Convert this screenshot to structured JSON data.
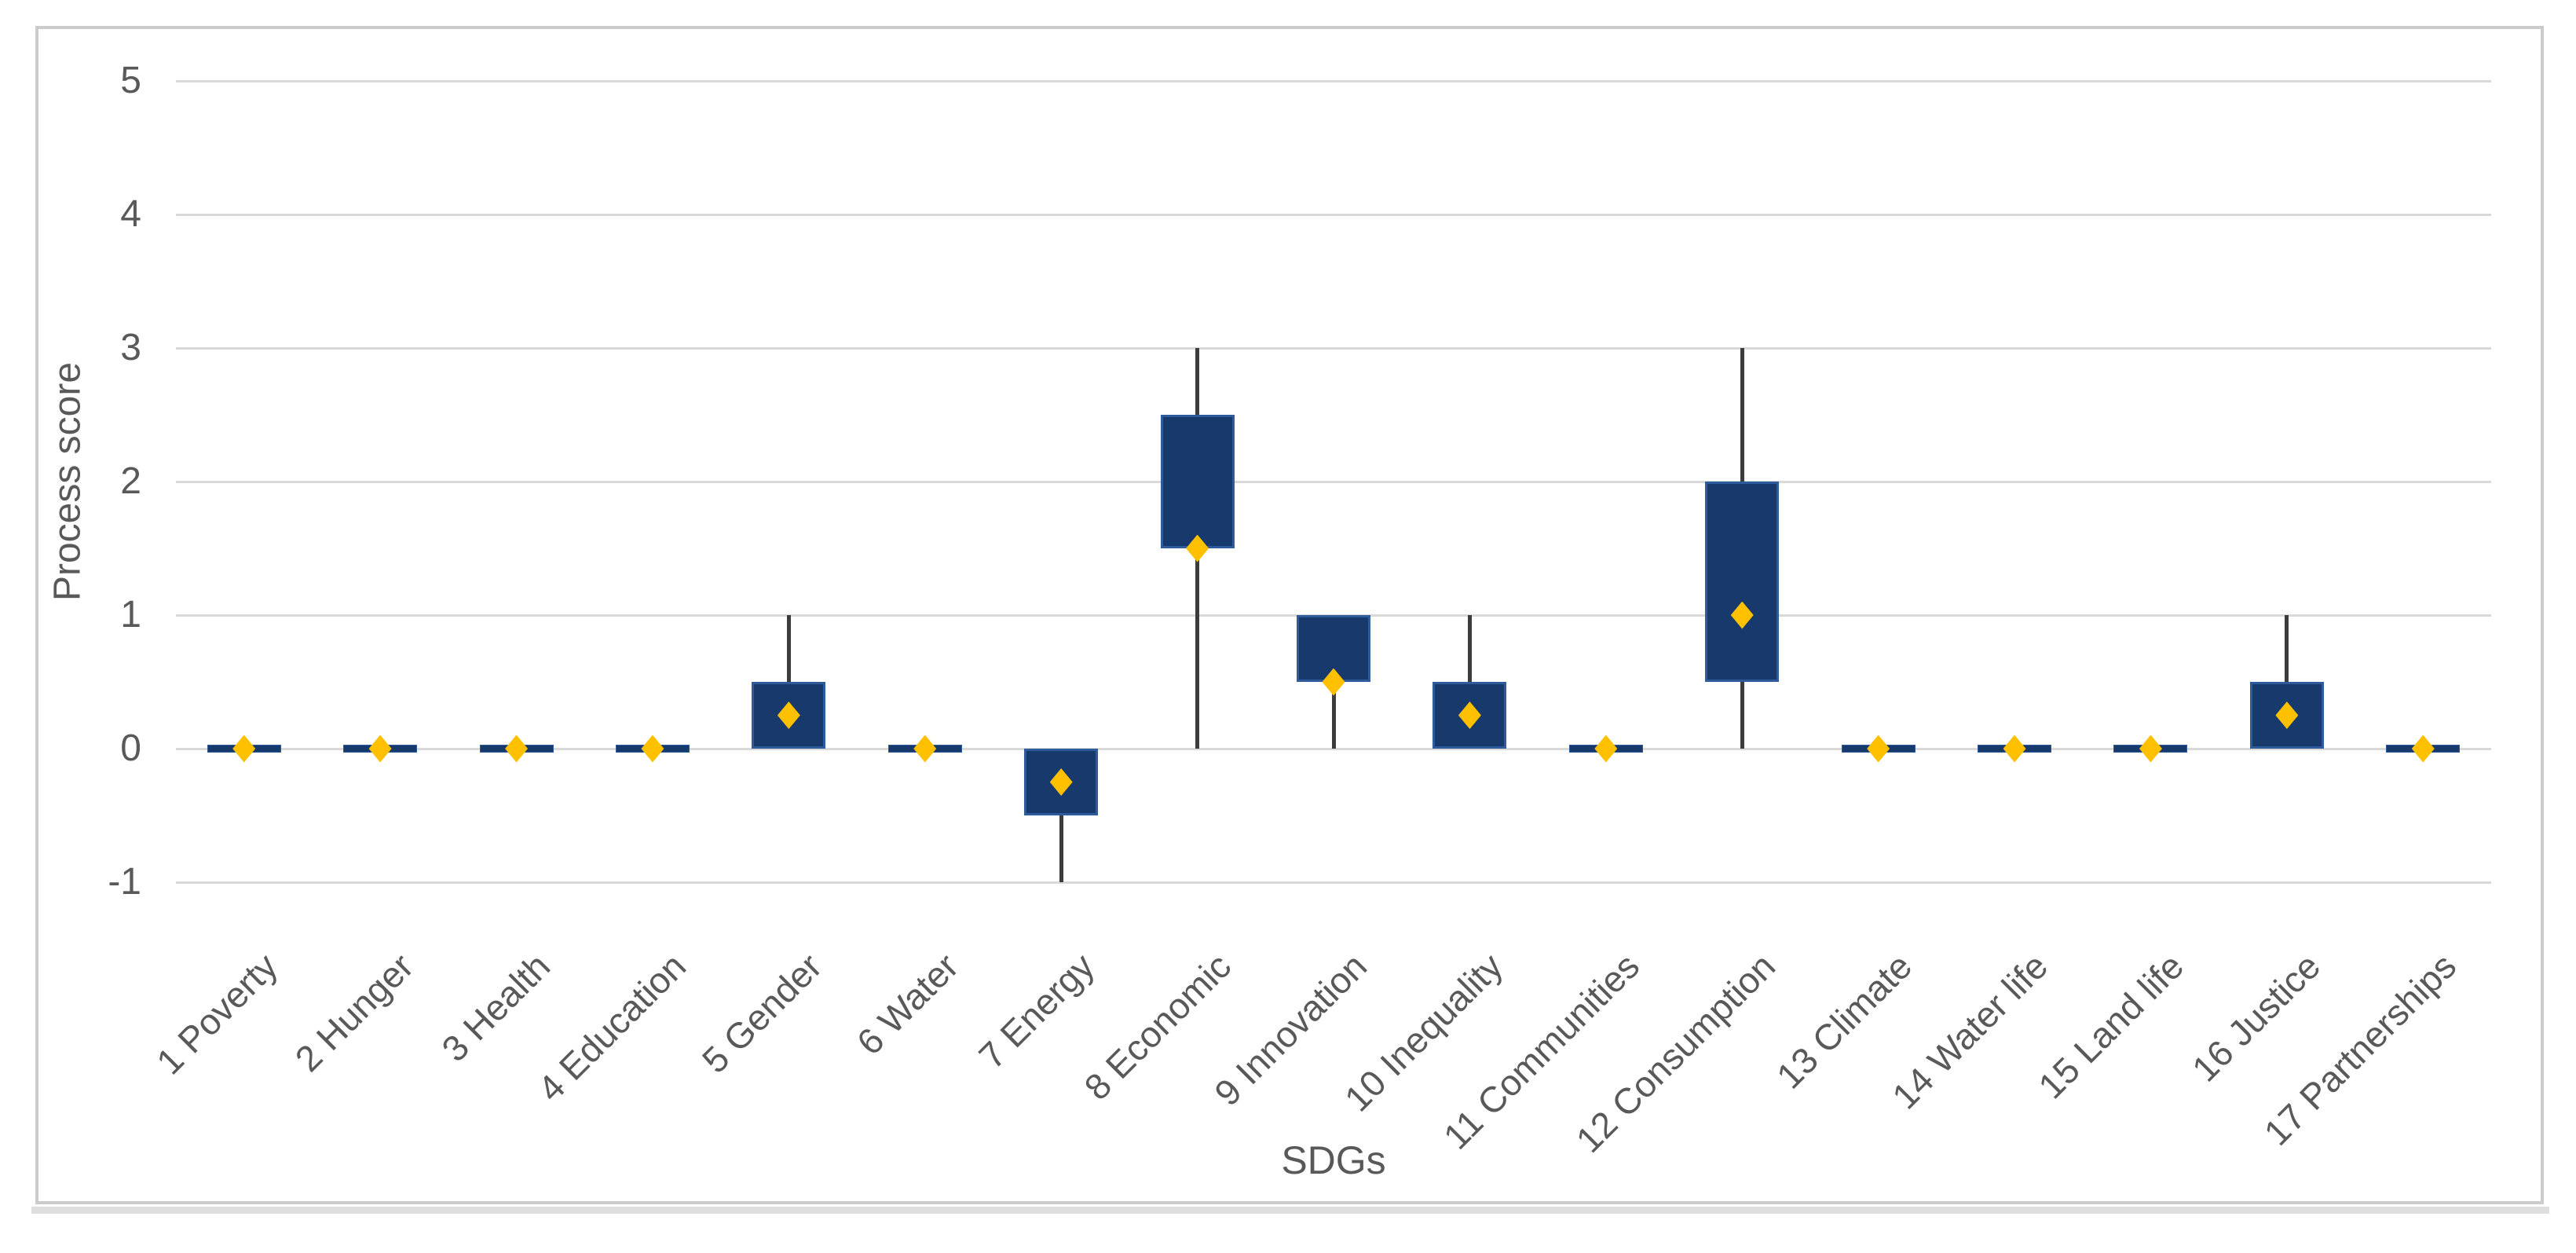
{
  "chart_data": {
    "type": "boxplot",
    "xlabel": "SDGs",
    "ylabel": "Process score",
    "ylim": [
      -1,
      5
    ],
    "grid": true,
    "legend": false,
    "y_ticks": [
      5,
      4,
      3,
      2,
      1,
      0,
      -1
    ],
    "categories": [
      "1 Poverty",
      "2 Hunger",
      "3 Health",
      "4 Education",
      "5 Gender",
      "6 Water",
      "7 Energy",
      "8 Economic",
      "9 Innovation",
      "10 Inequality",
      "11 Communities",
      "12 Consumption",
      "13 Climate",
      "14 Water life",
      "15 Land life",
      "16 Justice",
      "17 Partnerships"
    ],
    "series": [
      {
        "category": "1 Poverty",
        "whisker_low": 0,
        "q1": 0,
        "q3": 0,
        "whisker_high": 0,
        "mean": 0
      },
      {
        "category": "2 Hunger",
        "whisker_low": 0,
        "q1": 0,
        "q3": 0,
        "whisker_high": 0,
        "mean": 0
      },
      {
        "category": "3 Health",
        "whisker_low": 0,
        "q1": 0,
        "q3": 0,
        "whisker_high": 0,
        "mean": 0
      },
      {
        "category": "4 Education",
        "whisker_low": 0,
        "q1": 0,
        "q3": 0,
        "whisker_high": 0,
        "mean": 0
      },
      {
        "category": "5 Gender",
        "whisker_low": 0,
        "q1": 0,
        "q3": 0.5,
        "whisker_high": 1,
        "mean": 0.25
      },
      {
        "category": "6 Water",
        "whisker_low": 0,
        "q1": 0,
        "q3": 0,
        "whisker_high": 0,
        "mean": 0
      },
      {
        "category": "7 Energy",
        "whisker_low": -1,
        "q1": -0.5,
        "q3": 0,
        "whisker_high": 0,
        "mean": -0.25
      },
      {
        "category": "8 Economic",
        "whisker_low": 0,
        "q1": 1.5,
        "q3": 2.5,
        "whisker_high": 3,
        "mean": 1.5
      },
      {
        "category": "9 Innovation",
        "whisker_low": 0,
        "q1": 0.5,
        "q3": 1,
        "whisker_high": 1,
        "mean": 0.5
      },
      {
        "category": "10 Inequality",
        "whisker_low": 0,
        "q1": 0,
        "q3": 0.5,
        "whisker_high": 1,
        "mean": 0.25
      },
      {
        "category": "11 Communities",
        "whisker_low": 0,
        "q1": 0,
        "q3": 0,
        "whisker_high": 0,
        "mean": 0
      },
      {
        "category": "12 Consumption",
        "whisker_low": 0,
        "q1": 0.5,
        "q3": 2,
        "whisker_high": 3,
        "mean": 1
      },
      {
        "category": "13 Climate",
        "whisker_low": 0,
        "q1": 0,
        "q3": 0,
        "whisker_high": 0,
        "mean": 0
      },
      {
        "category": "14 Water life",
        "whisker_low": 0,
        "q1": 0,
        "q3": 0,
        "whisker_high": 0,
        "mean": 0
      },
      {
        "category": "15 Land life",
        "whisker_low": 0,
        "q1": 0,
        "q3": 0,
        "whisker_high": 0,
        "mean": 0
      },
      {
        "category": "16 Justice",
        "whisker_low": 0,
        "q1": 0,
        "q3": 0.5,
        "whisker_high": 1,
        "mean": 0.25
      },
      {
        "category": "17 Partnerships",
        "whisker_low": 0,
        "q1": 0,
        "q3": 0,
        "whisker_high": 0,
        "mean": 0
      }
    ],
    "colors": {
      "box_fill": "#17396b",
      "box_border": "#2e5b9b",
      "mean_marker": "#ffc000",
      "whisker": "#3c3c3c",
      "gridline": "#d9d9d9",
      "tick_text": "#595959",
      "figure_border": "#cbcbcb",
      "bottom_strip": "#dedede"
    }
  }
}
